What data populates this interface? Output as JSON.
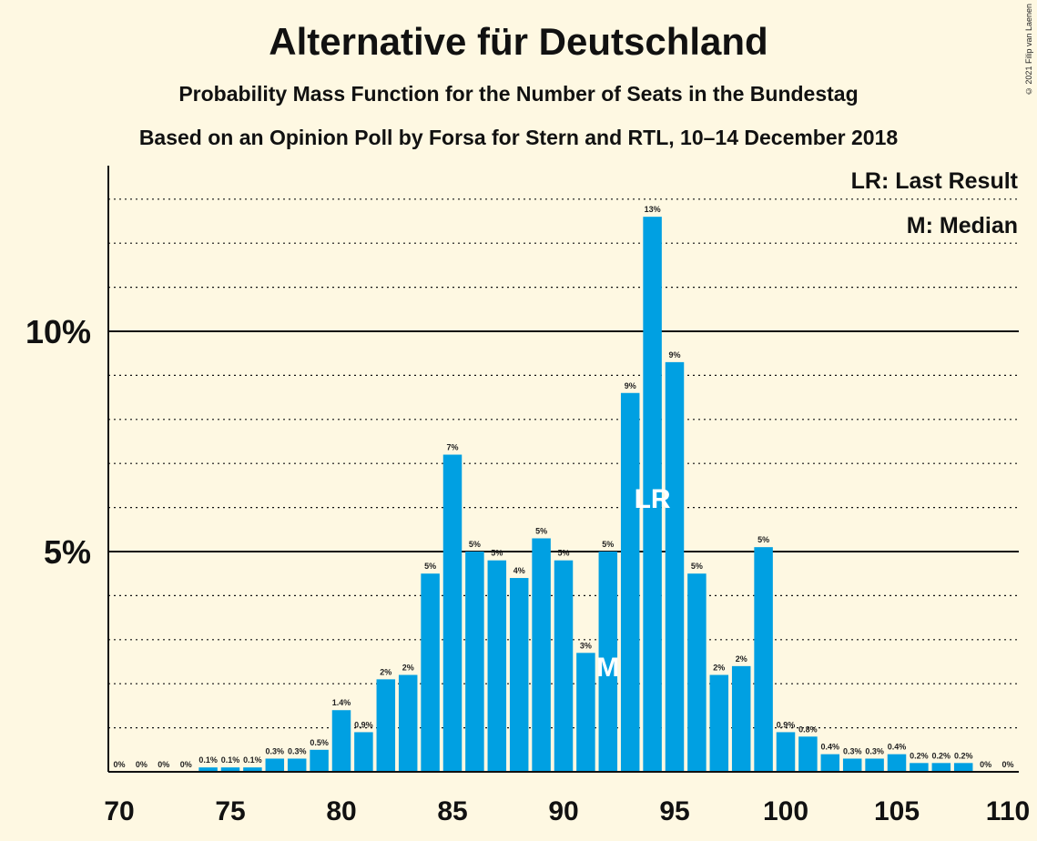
{
  "title": "Alternative für Deutschland",
  "subtitle": "Probability Mass Function for the Number of Seats in the Bundestag",
  "subtitle2": "Based on an Opinion Poll by Forsa for Stern and RTL, 10–14 December 2018",
  "copyright": "© 2021 Filip van Laenen",
  "legend": {
    "last_result": "LR: Last Result",
    "median": "M: Median"
  },
  "colors": {
    "bar": "#00a0e2",
    "background": "#fef8e2"
  },
  "chart_data": {
    "type": "bar",
    "x": [
      70,
      71,
      72,
      73,
      74,
      75,
      76,
      77,
      78,
      79,
      80,
      81,
      82,
      83,
      84,
      85,
      86,
      87,
      88,
      89,
      90,
      91,
      92,
      93,
      94,
      95,
      96,
      97,
      98,
      99,
      100,
      101,
      102,
      103,
      104,
      105,
      106,
      107,
      108,
      109,
      110
    ],
    "values": [
      0,
      0,
      0,
      0,
      0.1,
      0.1,
      0.1,
      0.3,
      0.3,
      0.5,
      1.4,
      0.9,
      2.1,
      2.2,
      4.5,
      7.2,
      5.0,
      4.8,
      4.4,
      5.3,
      4.8,
      2.7,
      5.0,
      8.6,
      12.6,
      9.3,
      4.5,
      2.2,
      2.4,
      5.1,
      0.9,
      0.8,
      0.4,
      0.3,
      0.3,
      0.4,
      0.2,
      0.2,
      0.2,
      0,
      0
    ],
    "labels": [
      "0%",
      "0%",
      "0%",
      "0%",
      "0.1%",
      "0.1%",
      "0.1%",
      "0.3%",
      "0.3%",
      "0.5%",
      "1.4%",
      "0.9%",
      "2%",
      "2%",
      "5%",
      "7%",
      "5%",
      "5%",
      "4%",
      "5%",
      "5%",
      "3%",
      "5%",
      "9%",
      "13%",
      "9%",
      "5%",
      "2%",
      "2%",
      "5%",
      "0.9%",
      "0.8%",
      "0.4%",
      "0.3%",
      "0.3%",
      "0.4%",
      "0.2%",
      "0.2%",
      "0.2%",
      "0%",
      "0%"
    ],
    "xticks": [
      70,
      75,
      80,
      85,
      90,
      95,
      100,
      105,
      110
    ],
    "yticks": [
      5,
      10
    ],
    "ytick_labels": [
      "5%",
      "10%"
    ],
    "ylim": [
      0,
      13.7
    ],
    "last_result_x": 94,
    "last_result_label": "LR",
    "median_x": 92,
    "median_label": "M",
    "grid": "dotted every 1%, solid at 5% and 10%"
  }
}
